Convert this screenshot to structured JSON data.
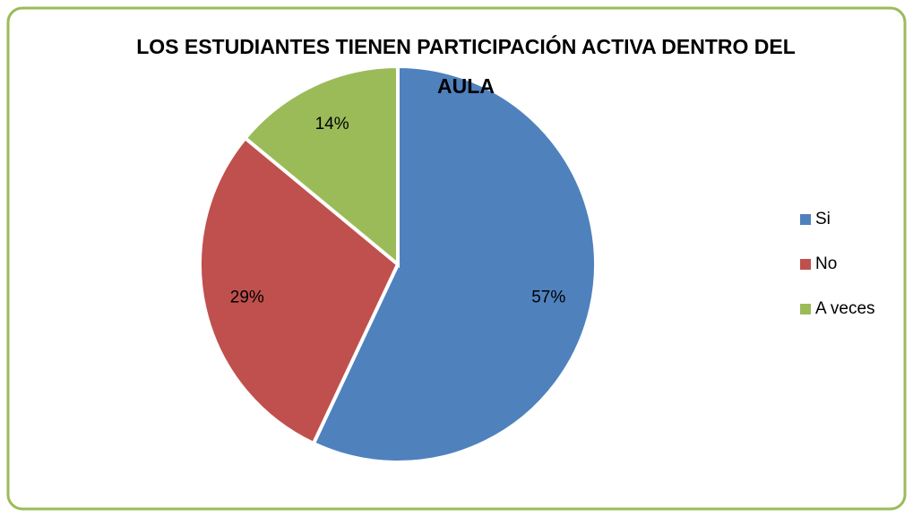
{
  "chart_data": {
    "type": "pie",
    "title": "LOS ESTUDIANTES TIENEN PARTICIPACIÓN ACTIVA DENTRO DEL AULA",
    "categories": [
      "Si",
      "No",
      "A veces"
    ],
    "values": [
      57,
      29,
      14
    ],
    "value_labels": [
      "57%",
      "29%",
      "14%"
    ],
    "colors": [
      "#4f81bd",
      "#c0504d",
      "#9bbb59"
    ],
    "legend": "right"
  }
}
